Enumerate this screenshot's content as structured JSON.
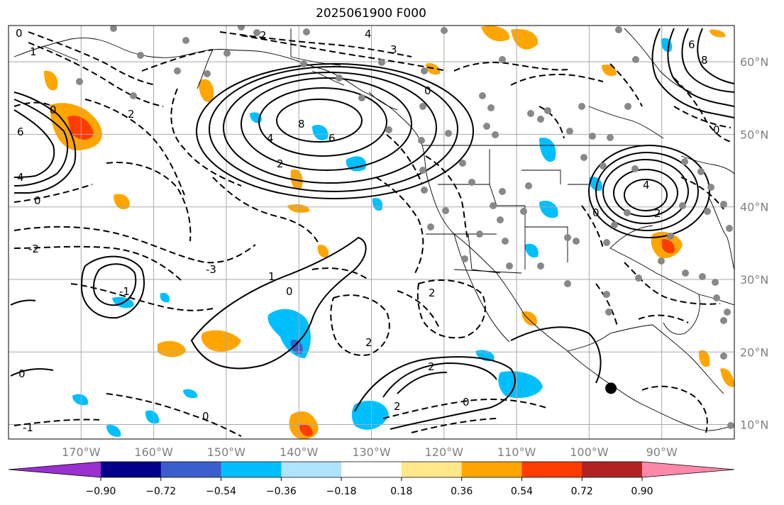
{
  "title": "2025061900 F000",
  "map": {
    "lon_range": [
      -180,
      -80
    ],
    "lat_range": [
      8,
      65
    ],
    "lon_ticks": [
      {
        "value": -170,
        "label": "170°W"
      },
      {
        "value": -160,
        "label": "160°W"
      },
      {
        "value": -150,
        "label": "150°W"
      },
      {
        "value": -140,
        "label": "140°W"
      },
      {
        "value": -130,
        "label": "130°W"
      },
      {
        "value": -120,
        "label": "120°W"
      },
      {
        "value": -110,
        "label": "110°W"
      },
      {
        "value": -100,
        "label": "100°W"
      },
      {
        "value": -90,
        "label": "90°W"
      }
    ],
    "lat_ticks": [
      {
        "value": 60,
        "label": "60°N"
      },
      {
        "value": 50,
        "label": "50°N"
      },
      {
        "value": 40,
        "label": "40°N"
      },
      {
        "value": 30,
        "label": "30°N"
      },
      {
        "value": 20,
        "label": "20°N"
      },
      {
        "value": 10,
        "label": "10°N"
      }
    ],
    "contour_labels": [
      "0",
      "1",
      "2",
      "3",
      "4",
      "6",
      "8",
      "-1",
      "-2",
      "-3"
    ],
    "marker": {
      "lon": -97,
      "lat": 15
    }
  },
  "colorbar": {
    "colors": [
      "#9b30d0",
      "#00008b",
      "#3a5fcd",
      "#00bfff",
      "#afe3ff",
      "#ffffff",
      "#ffe88a",
      "#ffa500",
      "#ff3c00",
      "#b22222",
      "#ff88aa"
    ],
    "labels": [
      "−0.90",
      "−0.72",
      "−0.54",
      "−0.36",
      "−0.18",
      "0.18",
      "0.36",
      "0.54",
      "0.72",
      "0.90"
    ],
    "extend": "both"
  }
}
